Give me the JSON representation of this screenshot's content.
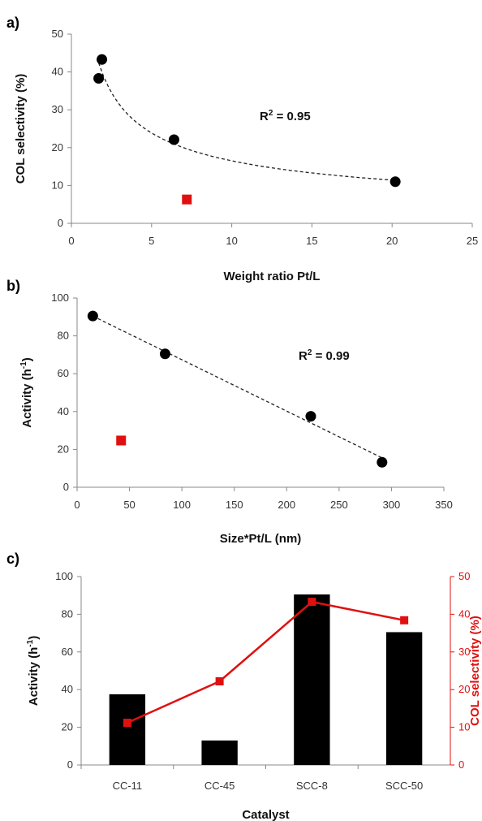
{
  "chart_data": [
    {
      "panel": "a)",
      "type": "scatter",
      "xlabel": "Weight ratio Pt/L",
      "ylabel": "COL selectivity (%)",
      "xlim": [
        0,
        25
      ],
      "ylim": [
        0,
        50
      ],
      "xticks": [
        "0",
        "5",
        "10",
        "15",
        "20",
        "25"
      ],
      "yticks": [
        "0",
        "10",
        "20",
        "30",
        "40",
        "50"
      ],
      "series": [
        {
          "marker": "circle",
          "color": "#000000",
          "x": [
            1.7,
            1.9,
            6.4,
            20.2
          ],
          "y": [
            38.3,
            43.3,
            22.1,
            11.0
          ]
        },
        {
          "marker": "square",
          "color": "#e01010",
          "x": [
            7.2
          ],
          "y": [
            6.3
          ]
        }
      ],
      "fit": {
        "kind": "power",
        "style": "dashed"
      },
      "annotation": {
        "prefix": "R",
        "sup": "2",
        "suffix": " = 0.95"
      },
      "grid": false
    },
    {
      "panel": "b)",
      "type": "scatter",
      "xlabel": "Size*Pt/L (nm)",
      "ylabel_main": "Activity (h",
      "ylabel_sup": "-1",
      "ylabel_end": ")",
      "xlim": [
        0,
        350
      ],
      "ylim": [
        0,
        100
      ],
      "xticks": [
        "0",
        "50",
        "100",
        "150",
        "200",
        "250",
        "300",
        "350"
      ],
      "yticks": [
        "0",
        "20",
        "40",
        "60",
        "80",
        "100"
      ],
      "series": [
        {
          "marker": "circle",
          "color": "#000000",
          "x": [
            15,
            84,
            223,
            291
          ],
          "y": [
            90.5,
            70.5,
            37.5,
            13.2
          ]
        },
        {
          "marker": "square",
          "color": "#e01010",
          "x": [
            42
          ],
          "y": [
            24.7
          ]
        }
      ],
      "fit": {
        "kind": "linear",
        "style": "dashed"
      },
      "annotation": {
        "prefix": "R",
        "sup": "2",
        "suffix": " = 0.99"
      },
      "grid": false
    },
    {
      "panel": "c)",
      "type": "bar",
      "xlabel": "Catalyst",
      "ylabel_main": "Activity (h",
      "ylabel_sup": "-1",
      "ylabel_end": ")",
      "y2label": "COL selectivity (%)",
      "categories": [
        "CC-11",
        "CC-45",
        "SCC-8",
        "SCC-50"
      ],
      "ylim": [
        0,
        100
      ],
      "y2lim": [
        0,
        50
      ],
      "yticks": [
        "0",
        "20",
        "40",
        "60",
        "80",
        "100"
      ],
      "y2ticks": [
        "0",
        "10",
        "20",
        "30",
        "40",
        "50"
      ],
      "series": [
        {
          "kind": "bar",
          "axis": "left",
          "color": "#000000",
          "values": [
            37.5,
            13.0,
            90.5,
            70.5
          ]
        },
        {
          "kind": "line",
          "axis": "right",
          "color": "#e01010",
          "values": [
            11.2,
            22.2,
            43.3,
            38.4
          ]
        }
      ],
      "grid": false
    }
  ]
}
